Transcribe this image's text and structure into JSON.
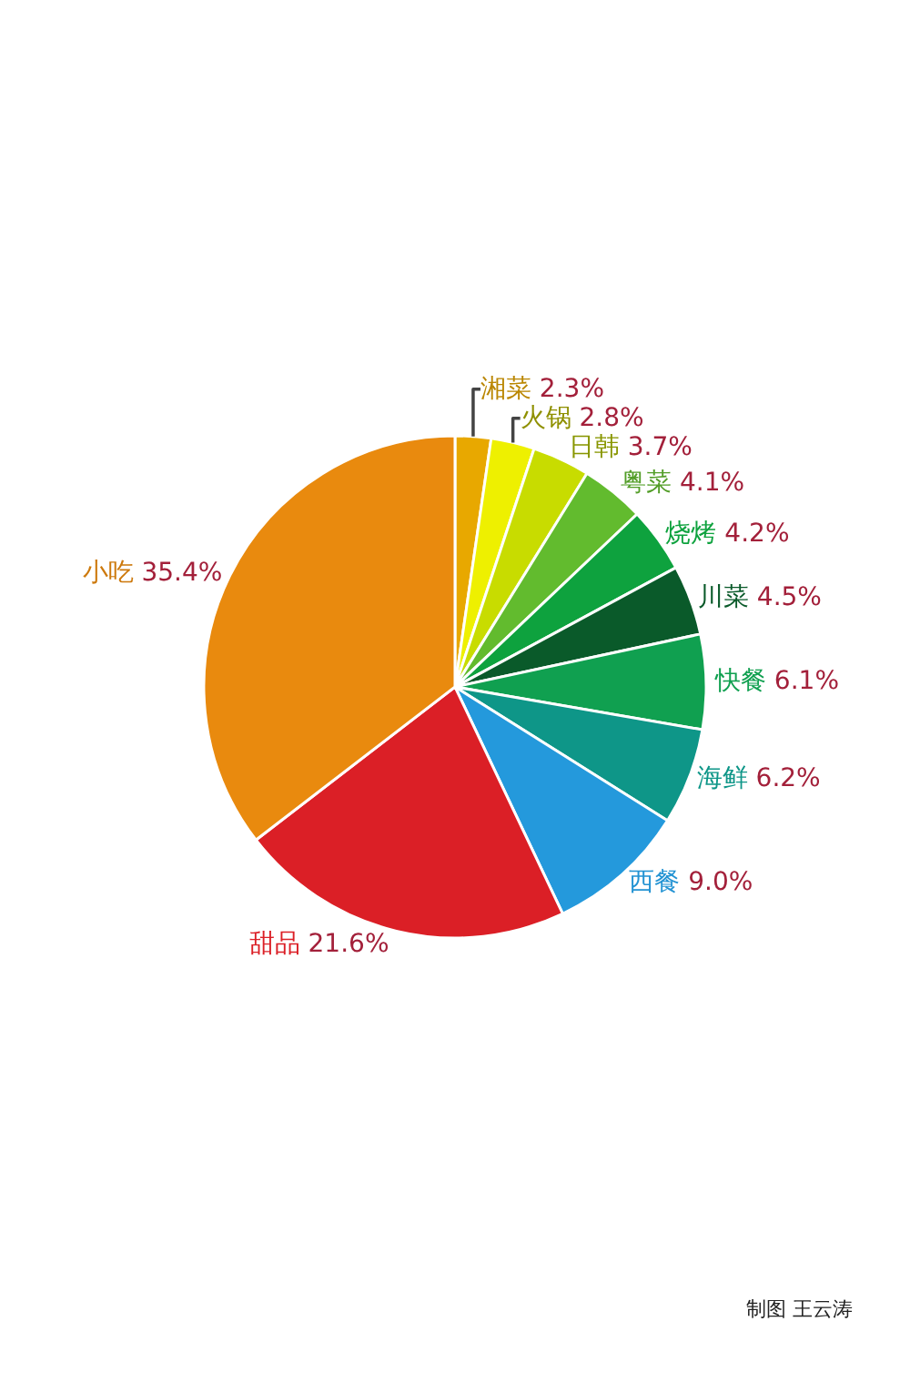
{
  "chart_data": {
    "type": "pie",
    "categories": [
      "湘菜",
      "火锅",
      "日韩",
      "粤菜",
      "烧烤",
      "川菜",
      "快餐",
      "海鲜",
      "西餐",
      "甜品",
      "小吃"
    ],
    "values": [
      2.3,
      2.8,
      3.7,
      4.1,
      4.2,
      4.5,
      6.1,
      6.2,
      9.0,
      21.6,
      35.4
    ],
    "value_labels": [
      "2.3%",
      "2.8%",
      "3.7%",
      "4.1%",
      "4.2%",
      "4.5%",
      "6.1%",
      "6.2%",
      "9.0%",
      "21.6%",
      "35.4%"
    ],
    "colors": [
      "#e8a800",
      "#eef000",
      "#c8dc00",
      "#62bb2e",
      "#0ea23e",
      "#0a5a2a",
      "#10a050",
      "#0e9688",
      "#2499dc",
      "#db1f26",
      "#e98a0e"
    ],
    "legend": false,
    "annotations": [
      "制图 王云涛"
    ]
  }
}
